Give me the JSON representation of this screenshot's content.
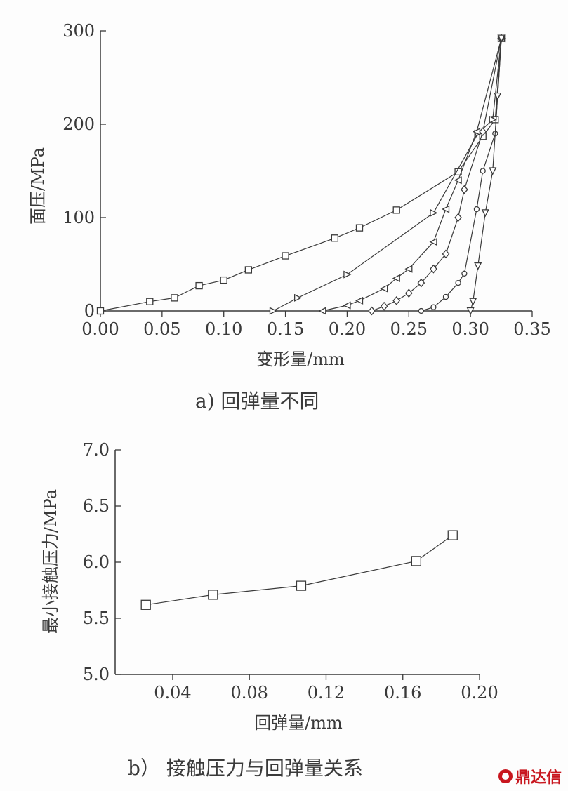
{
  "chart_data": [
    {
      "type": "line",
      "caption": "a) 回弹量不同",
      "xlabel": "变形量/mm",
      "ylabel": "面压/MPa",
      "xlim": [
        0,
        0.35
      ],
      "ylim": [
        0,
        300
      ],
      "x_ticks": [
        "0.00",
        "0.05",
        "0.10",
        "0.15",
        "0.20",
        "0.25",
        "0.30",
        "0.35"
      ],
      "y_ticks": [
        "0",
        "100",
        "200",
        "300"
      ],
      "grid": false,
      "series": [
        {
          "marker": "square",
          "size": 4.5,
          "points": [
            [
              0.0,
              0
            ],
            [
              0.04,
              10
            ],
            [
              0.06,
              14
            ],
            [
              0.08,
              27
            ],
            [
              0.1,
              33
            ],
            [
              0.12,
              44
            ],
            [
              0.15,
              59
            ],
            [
              0.19,
              78
            ],
            [
              0.21,
              89
            ],
            [
              0.24,
              108
            ],
            [
              0.29,
              149
            ],
            [
              0.31,
              187
            ],
            [
              0.32,
              205
            ],
            [
              0.325,
              292
            ]
          ]
        },
        {
          "marker": "triangle-right",
          "size": 4.5,
          "points": [
            [
              0.14,
              0
            ],
            [
              0.16,
              14
            ],
            [
              0.2,
              39
            ],
            [
              0.27,
              105
            ],
            [
              0.306,
              190
            ],
            [
              0.318,
              205
            ],
            [
              0.325,
              292
            ]
          ]
        },
        {
          "marker": "triangle-left",
          "size": 4.5,
          "points": [
            [
              0.18,
              0
            ],
            [
              0.2,
              6
            ],
            [
              0.21,
              11
            ],
            [
              0.23,
              24
            ],
            [
              0.24,
              35
            ],
            [
              0.25,
              45
            ],
            [
              0.27,
              74
            ],
            [
              0.28,
              109
            ],
            [
              0.29,
              140
            ],
            [
              0.305,
              192
            ],
            [
              0.325,
              292
            ]
          ]
        },
        {
          "marker": "diamond",
          "size": 4.5,
          "points": [
            [
              0.22,
              0
            ],
            [
              0.23,
              5
            ],
            [
              0.24,
              11
            ],
            [
              0.25,
              19
            ],
            [
              0.26,
              30
            ],
            [
              0.27,
              45
            ],
            [
              0.28,
              61
            ],
            [
              0.29,
              100
            ],
            [
              0.295,
              130
            ],
            [
              0.31,
              192
            ],
            [
              0.325,
              292
            ]
          ]
        },
        {
          "marker": "circle",
          "size": 3.5,
          "points": [
            [
              0.26,
              0
            ],
            [
              0.27,
              4
            ],
            [
              0.28,
              15
            ],
            [
              0.29,
              30
            ],
            [
              0.295,
              40
            ],
            [
              0.305,
              109
            ],
            [
              0.31,
              150
            ],
            [
              0.32,
              190
            ],
            [
              0.325,
              292
            ]
          ]
        },
        {
          "marker": "triangle-down",
          "size": 4.5,
          "points": [
            [
              0.3,
              0
            ],
            [
              0.302,
              10
            ],
            [
              0.306,
              48
            ],
            [
              0.312,
              105
            ],
            [
              0.318,
              150
            ],
            [
              0.322,
              230
            ],
            [
              0.325,
              292
            ]
          ]
        }
      ]
    },
    {
      "type": "line",
      "caption": "b） 接触压力与回弹量关系",
      "xlabel": "回弹量/mm",
      "ylabel": "最小接触压力/MPa",
      "xlim": [
        0.01,
        0.2
      ],
      "ylim": [
        5.0,
        7.0
      ],
      "x_ticks": [
        "0.04",
        "0.08",
        "0.12",
        "0.16",
        "0.20"
      ],
      "y_ticks": [
        "5.0",
        "5.5",
        "6.0",
        "6.5",
        "7.0"
      ],
      "grid": false,
      "series": [
        {
          "marker": "square",
          "size": 6.5,
          "points": [
            [
              0.026,
              5.62
            ],
            [
              0.061,
              5.71
            ],
            [
              0.107,
              5.79
            ],
            [
              0.167,
              6.01
            ],
            [
              0.186,
              6.24
            ]
          ]
        }
      ]
    }
  ],
  "watermark": "鼎达信"
}
